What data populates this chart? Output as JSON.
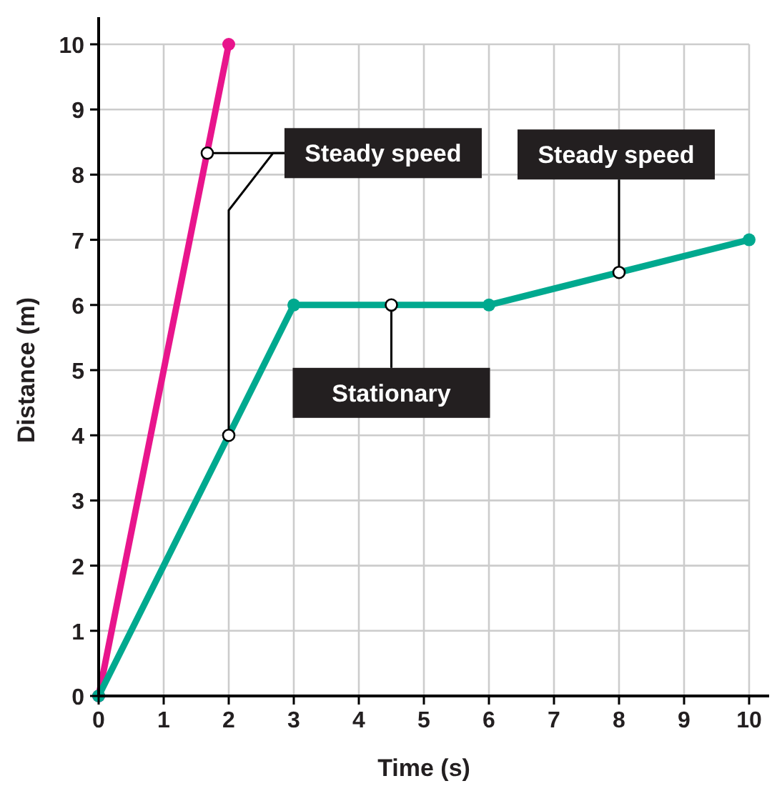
{
  "chart_data": {
    "type": "line",
    "xlabel": "Time (s)",
    "ylabel": "Distance (m)",
    "xlim": [
      0,
      10
    ],
    "ylim": [
      0,
      10
    ],
    "xticks": [
      0,
      1,
      2,
      3,
      4,
      5,
      6,
      7,
      8,
      9,
      10
    ],
    "yticks": [
      0,
      1,
      2,
      3,
      4,
      5,
      6,
      7,
      8,
      9,
      10
    ],
    "grid": true,
    "marker": "circle",
    "line_style": "solid",
    "series": [
      {
        "color": "#e8158c",
        "x": [
          0,
          2
        ],
        "values": [
          0,
          10
        ]
      },
      {
        "color": "#00a98f",
        "x": [
          0,
          3,
          6,
          10
        ],
        "values": [
          0,
          6,
          6,
          7
        ]
      }
    ],
    "annotations": [
      {
        "text": "Steady speed",
        "x": 1.67,
        "y": 8.33
      },
      {
        "text": "Stationary",
        "x": 4.5,
        "y": 6
      },
      {
        "text": "Steady speed",
        "x": 8,
        "y": 6.5
      }
    ]
  }
}
